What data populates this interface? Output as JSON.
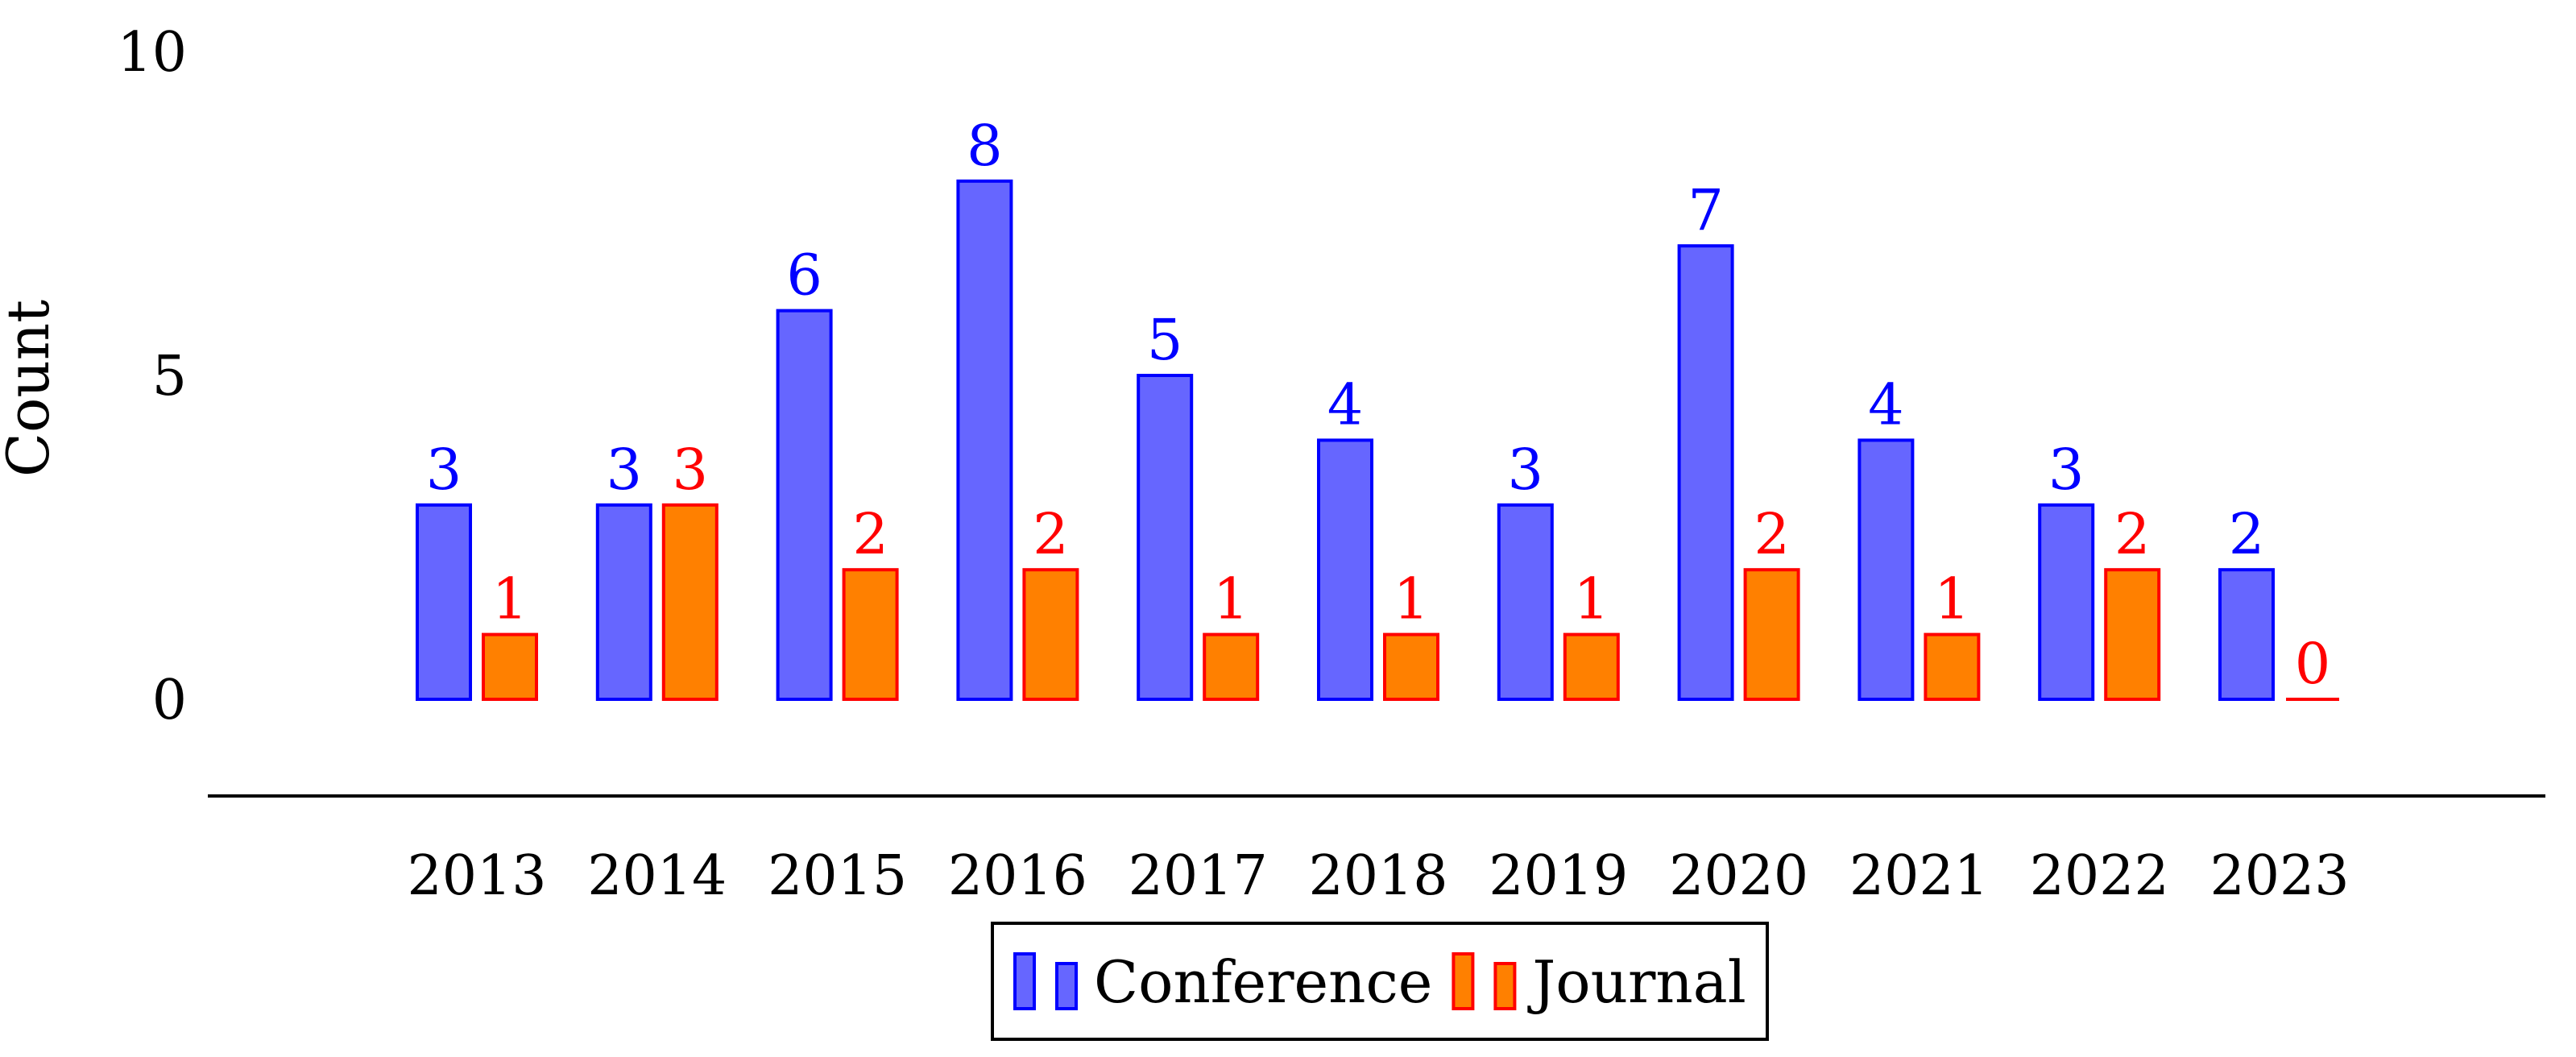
{
  "chart_data": {
    "type": "bar",
    "title": "",
    "xlabel": "",
    "ylabel": "Count",
    "categories": [
      "2013",
      "2014",
      "2015",
      "2016",
      "2017",
      "2018",
      "2019",
      "2020",
      "2021",
      "2022",
      "2023"
    ],
    "series": [
      {
        "name": "Conference",
        "values": [
          3,
          3,
          6,
          8,
          5,
          4,
          3,
          7,
          4,
          3,
          2
        ],
        "fill": "#6666ff",
        "stroke": "#0000ff",
        "label_color": "#0000ff"
      },
      {
        "name": "Journal",
        "values": [
          1,
          3,
          2,
          2,
          1,
          1,
          1,
          2,
          1,
          2,
          0
        ],
        "fill": "#ff8000",
        "stroke": "#ff0000",
        "label_color": "#ff0000"
      }
    ],
    "yticks": [
      0,
      5,
      10
    ],
    "ylim": [
      0,
      10
    ],
    "grid": false,
    "legend_position": "bottom-center",
    "data_labels": true
  }
}
